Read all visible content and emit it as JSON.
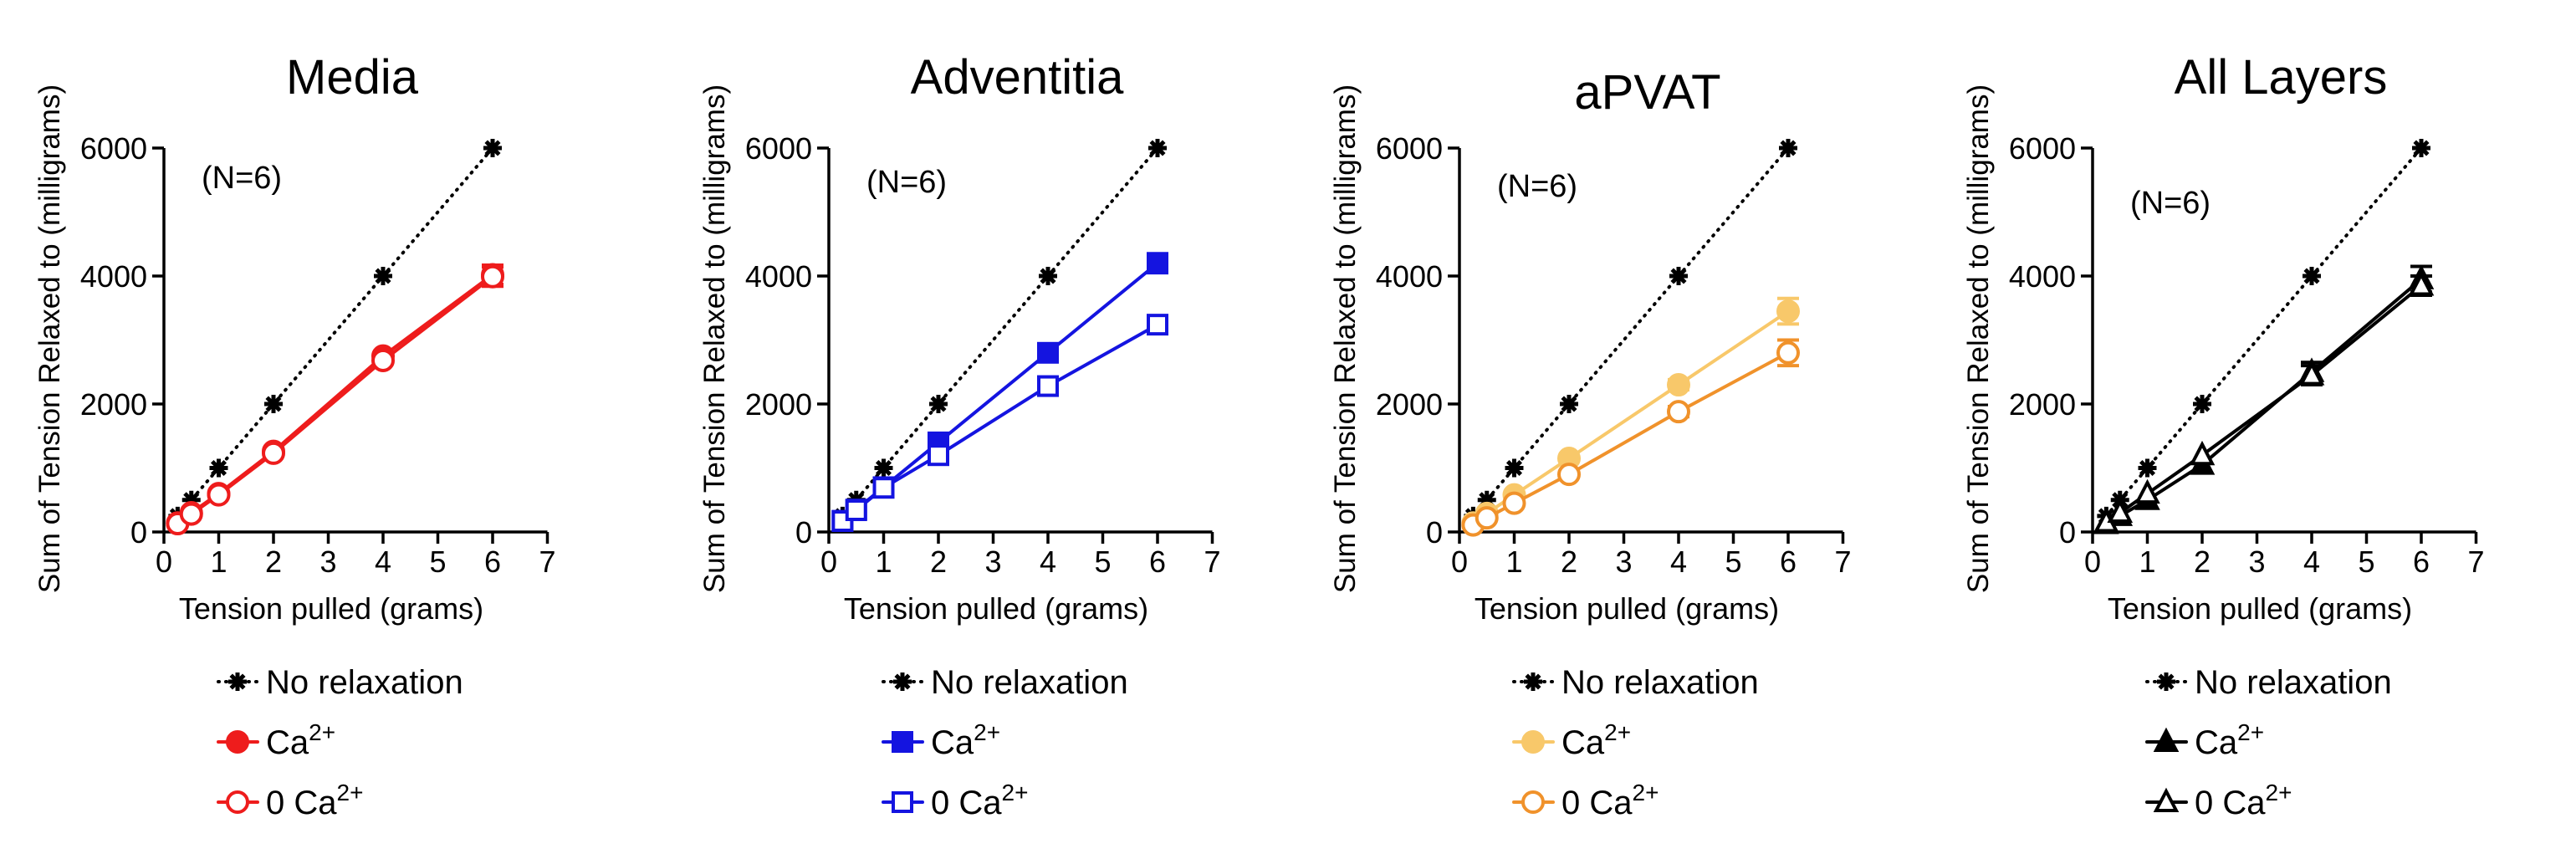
{
  "chart_data": [
    {
      "type": "line",
      "title": "Media",
      "annotation": "(N=6)",
      "xlabel": "Tension pulled (grams)",
      "ylabel": "Sum of Tension Relaxed to (milligrams)",
      "xlim": [
        0,
        7
      ],
      "ylim": [
        0,
        6000
      ],
      "xticks": [
        "0",
        "1",
        "2",
        "3",
        "4",
        "5",
        "6",
        "7"
      ],
      "yticks": [
        "0",
        "2000",
        "4000",
        "6000"
      ],
      "x": [
        0.25,
        0.5,
        1,
        2,
        4,
        6
      ],
      "series": [
        {
          "name": "No relaxation",
          "label_base": "No relaxation",
          "label_sup": "",
          "marker": "star",
          "color": "#000000",
          "filled": true,
          "dotted": true,
          "values": [
            250,
            500,
            1000,
            2000,
            4000,
            6000
          ],
          "err": [
            0,
            0,
            0,
            0,
            0,
            0
          ]
        },
        {
          "name": "Ca2+",
          "label_base": "Ca",
          "label_sup": "2+",
          "marker": "circle",
          "color": "#EE1C1C",
          "filled": true,
          "dotted": false,
          "values": [
            140,
            300,
            600,
            1260,
            2750,
            4020
          ],
          "err": [
            10,
            20,
            30,
            50,
            60,
            150
          ]
        },
        {
          "name": "0 Ca2+",
          "label_base": "0 Ca",
          "label_sup": "2+",
          "marker": "circle",
          "color": "#EE1C1C",
          "filled": false,
          "dotted": false,
          "values": [
            130,
            280,
            580,
            1230,
            2680,
            3990
          ],
          "err": [
            10,
            20,
            30,
            50,
            60,
            150
          ]
        }
      ]
    },
    {
      "type": "line",
      "title": "Adventitia",
      "annotation": "(N=6)",
      "xlabel": "Tension pulled (grams)",
      "ylabel": "Sum of Tension Relaxed to (milligrams)",
      "xlim": [
        0,
        7
      ],
      "ylim": [
        0,
        6000
      ],
      "xticks": [
        "0",
        "1",
        "2",
        "3",
        "4",
        "5",
        "6",
        "7"
      ],
      "yticks": [
        "0",
        "2000",
        "4000",
        "6000"
      ],
      "x": [
        0.25,
        0.5,
        1,
        2,
        4,
        6
      ],
      "series": [
        {
          "name": "No relaxation",
          "label_base": "No relaxation",
          "label_sup": "",
          "marker": "star",
          "color": "#000000",
          "filled": true,
          "dotted": true,
          "values": [
            250,
            500,
            1000,
            2000,
            4000,
            6000
          ],
          "err": [
            0,
            0,
            0,
            0,
            0,
            0
          ]
        },
        {
          "name": "Ca2+",
          "label_base": "Ca",
          "label_sup": "2+",
          "marker": "square",
          "color": "#1414E0",
          "filled": true,
          "dotted": false,
          "values": [
            175,
            350,
            700,
            1400,
            2800,
            4200
          ],
          "err": [
            10,
            20,
            30,
            50,
            60,
            150
          ]
        },
        {
          "name": "0 Ca2+",
          "label_base": "0 Ca",
          "label_sup": "2+",
          "marker": "square",
          "color": "#1414E0",
          "filled": false,
          "dotted": false,
          "values": [
            170,
            340,
            690,
            1200,
            2280,
            3240
          ],
          "err": [
            10,
            20,
            30,
            50,
            60,
            80
          ]
        }
      ]
    },
    {
      "type": "line",
      "title": "aPVAT",
      "annotation": "(N=6)",
      "xlabel": "Tension pulled (grams)",
      "ylabel": "Sum of Tension Relaxed to (milligrams)",
      "xlim": [
        0,
        7
      ],
      "ylim": [
        0,
        6000
      ],
      "xticks": [
        "0",
        "1",
        "2",
        "3",
        "4",
        "5",
        "6",
        "7"
      ],
      "yticks": [
        "0",
        "2000",
        "4000",
        "6000"
      ],
      "x": [
        0.25,
        0.5,
        1,
        2,
        4,
        6
      ],
      "series": [
        {
          "name": "No relaxation",
          "label_base": "No relaxation",
          "label_sup": "",
          "marker": "star",
          "color": "#000000",
          "filled": true,
          "dotted": true,
          "values": [
            250,
            500,
            1000,
            2000,
            4000,
            6000
          ],
          "err": [
            0,
            0,
            0,
            0,
            0,
            0
          ]
        },
        {
          "name": "Ca2+",
          "label_base": "Ca",
          "label_sup": "2+",
          "marker": "circle",
          "color": "#F8C86A",
          "filled": true,
          "dotted": false,
          "values": [
            140,
            290,
            580,
            1150,
            2300,
            3450
          ],
          "err": [
            10,
            20,
            40,
            60,
            80,
            200
          ]
        },
        {
          "name": "0 Ca2+",
          "label_base": "0 Ca",
          "label_sup": "2+",
          "marker": "circle",
          "color": "#F0922B",
          "filled": false,
          "dotted": false,
          "values": [
            110,
            220,
            450,
            900,
            1880,
            2800
          ],
          "err": [
            10,
            20,
            30,
            50,
            80,
            200
          ]
        }
      ]
    },
    {
      "type": "line",
      "title": "All Layers",
      "annotation": "(N=6)",
      "xlabel": "Tension pulled (grams)",
      "ylabel": "Sum of Tension Relaxed to (milligrams)",
      "xlim": [
        0,
        7
      ],
      "ylim": [
        0,
        6000
      ],
      "xticks": [
        "0",
        "1",
        "2",
        "3",
        "4",
        "5",
        "6",
        "7"
      ],
      "yticks": [
        "0",
        "2000",
        "4000",
        "6000"
      ],
      "x": [
        0.25,
        0.5,
        1,
        2,
        4,
        6
      ],
      "series": [
        {
          "name": "No relaxation",
          "label_base": "No relaxation",
          "label_sup": "",
          "marker": "star",
          "color": "#000000",
          "filled": true,
          "dotted": true,
          "values": [
            250,
            500,
            1000,
            2000,
            4000,
            6000
          ],
          "err": [
            0,
            0,
            0,
            0,
            0,
            0
          ]
        },
        {
          "name": "Ca2+",
          "label_base": "Ca",
          "label_sup": "2+",
          "marker": "triangle",
          "color": "#000000",
          "filled": true,
          "dotted": false,
          "values": [
            125,
            250,
            500,
            1050,
            2500,
            3950
          ],
          "err": [
            10,
            20,
            30,
            60,
            150,
            200
          ]
        },
        {
          "name": "0 Ca2+",
          "label_base": "0 Ca",
          "label_sup": "2+",
          "marker": "triangle",
          "color": "#000000",
          "filled": false,
          "dotted": false,
          "values": [
            150,
            300,
            600,
            1200,
            2450,
            3850
          ],
          "err": [
            10,
            20,
            30,
            60,
            150,
            150
          ]
        }
      ]
    }
  ]
}
